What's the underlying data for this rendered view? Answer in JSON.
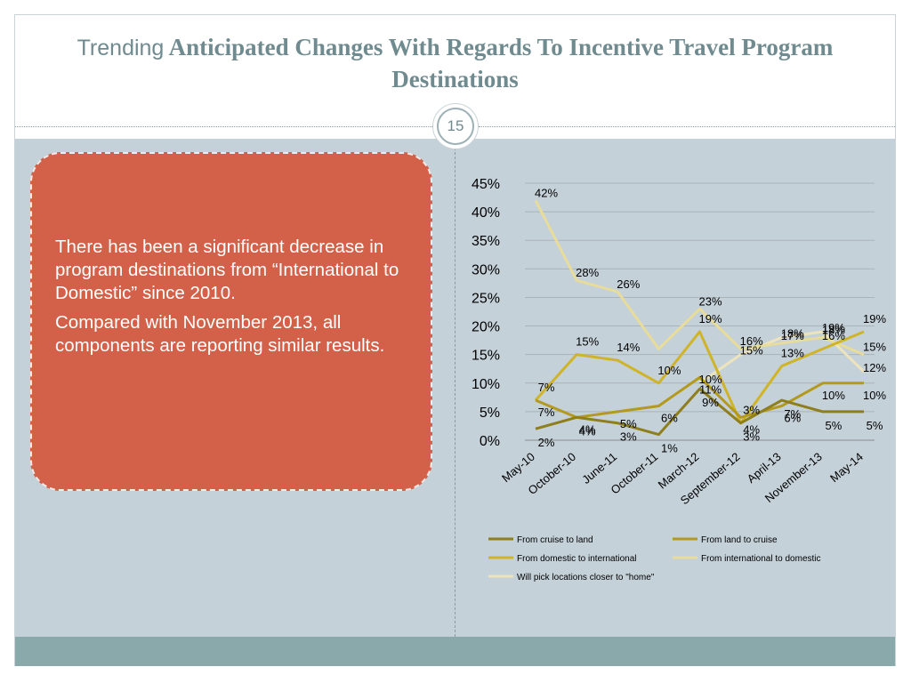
{
  "slide": {
    "title_lead": "Trending",
    "title_rest": " Anticipated Changes With Regards To  Incentive Travel Program Destinations",
    "page_number": "15"
  },
  "card": {
    "paragraphs": [
      "There has been a significant decrease in program destinations from “International to Domestic” since 2010.",
      "Compared with November 2013, all components are reporting similar results."
    ]
  },
  "chart_data": {
    "type": "line",
    "categories": [
      "May-10",
      "October-10",
      "June-11",
      "October-11",
      "March-12",
      "September-12",
      "April-13",
      "November-13",
      "May-14"
    ],
    "ylim": [
      0,
      45
    ],
    "y_ticks": [
      "0%",
      "5%",
      "10%",
      "15%",
      "20%",
      "25%",
      "30%",
      "35%",
      "40%",
      "45%"
    ],
    "grid": true,
    "legend_position": "bottom",
    "series": [
      {
        "name": "From cruise to land",
        "color": "#8e7e1c",
        "values": [
          2,
          4,
          3,
          1,
          9,
          3,
          7,
          5,
          5
        ],
        "labels": [
          "2%",
          "4%",
          "3%",
          "1%",
          "9%",
          "3%",
          "7%",
          "5%",
          "5%"
        ]
      },
      {
        "name": "From land to cruise",
        "color": "#b39a1e",
        "values": [
          7,
          4,
          5,
          6,
          11,
          4,
          6,
          10,
          10
        ],
        "labels": [
          "7%",
          "4%",
          "5%",
          "6%",
          "11%",
          "4%",
          "6%",
          "10%",
          "10%"
        ]
      },
      {
        "name": "From domestic to international",
        "color": "#cfb42a",
        "values": [
          7,
          15,
          14,
          10,
          19,
          3,
          13,
          16,
          19
        ],
        "labels": [
          "7%",
          "15%",
          "14%",
          "10%",
          "19%",
          "3%",
          "13%",
          "16%",
          "19%"
        ]
      },
      {
        "name": "From international to domestic",
        "color": "#e8dc9a",
        "values": [
          42,
          28,
          26,
          16,
          23,
          16,
          17,
          18,
          15
        ],
        "labels": [
          "42%",
          "28%",
          "26%",
          "",
          "23%",
          "16%",
          "17%",
          "18%",
          "15%"
        ]
      },
      {
        "name": "Will pick locations closer to \"home\"",
        "color": "#ede4bd",
        "values": [
          null,
          null,
          null,
          null,
          10,
          15,
          18,
          19,
          12
        ],
        "labels": [
          "",
          "",
          "",
          "",
          "10%",
          "15%",
          "18%",
          "19%",
          "12%"
        ]
      }
    ]
  }
}
